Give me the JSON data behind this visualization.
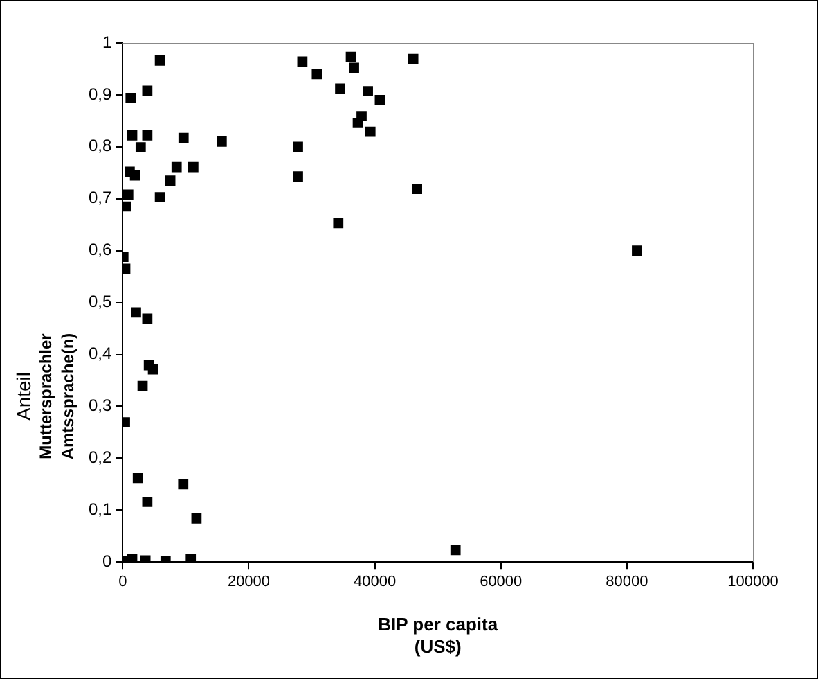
{
  "chart_data": {
    "type": "scatter",
    "xlabel": "BIP per capita\n(US$)",
    "ylabel": "Anteil\nMuttersprachler\nAmtssprache(n)",
    "x": [
      5900,
      1250,
      3900,
      1500,
      3900,
      2850,
      9650,
      15700,
      1100,
      1950,
      870,
      500,
      5900,
      7550,
      8550,
      11200,
      100,
      400,
      2100,
      3900,
      4150,
      4800,
      3150,
      350,
      2400,
      9600,
      3900,
      11700,
      700,
      1500,
      3600,
      6800,
      10800,
      28500,
      36200,
      36700,
      46100,
      30800,
      34500,
      38900,
      40800,
      37900,
      37300,
      39300,
      27800,
      27800,
      46700,
      34200,
      52800,
      81600
    ],
    "values": [
      0.966,
      0.894,
      0.908,
      0.822,
      0.822,
      0.799,
      0.817,
      0.81,
      0.752,
      0.745,
      0.708,
      0.685,
      0.703,
      0.735,
      0.761,
      0.761,
      0.588,
      0.565,
      0.481,
      0.469,
      0.379,
      0.371,
      0.339,
      0.269,
      0.162,
      0.15,
      0.116,
      0.084,
      0.002,
      0.006,
      0.003,
      0.002,
      0.006,
      0.964,
      0.973,
      0.952,
      0.969,
      0.94,
      0.912,
      0.907,
      0.89,
      0.859,
      0.846,
      0.829,
      0.8,
      0.743,
      0.719,
      0.653,
      0.023,
      0.6
    ],
    "color": "#000000",
    "marker": "square",
    "grid": false,
    "legend": false,
    "xlim": [
      0,
      100000
    ],
    "xticks": [
      0,
      20000,
      40000,
      60000,
      80000,
      100000
    ],
    "ylim": [
      0,
      1
    ],
    "yticks": [
      {
        "value": 0,
        "label": "0"
      },
      {
        "value": 0.1,
        "label": "0,1"
      },
      {
        "value": 0.2,
        "label": "0,2"
      },
      {
        "value": 0.3,
        "label": "0,3"
      },
      {
        "value": 0.4,
        "label": "0,4"
      },
      {
        "value": 0.5,
        "label": "0,5"
      },
      {
        "value": 0.6,
        "label": "0,6"
      },
      {
        "value": 0.7,
        "label": "0,7"
      },
      {
        "value": 0.8,
        "label": "0,8"
      },
      {
        "value": 0.9,
        "label": "0,9"
      },
      {
        "value": 1,
        "label": "1"
      }
    ]
  }
}
